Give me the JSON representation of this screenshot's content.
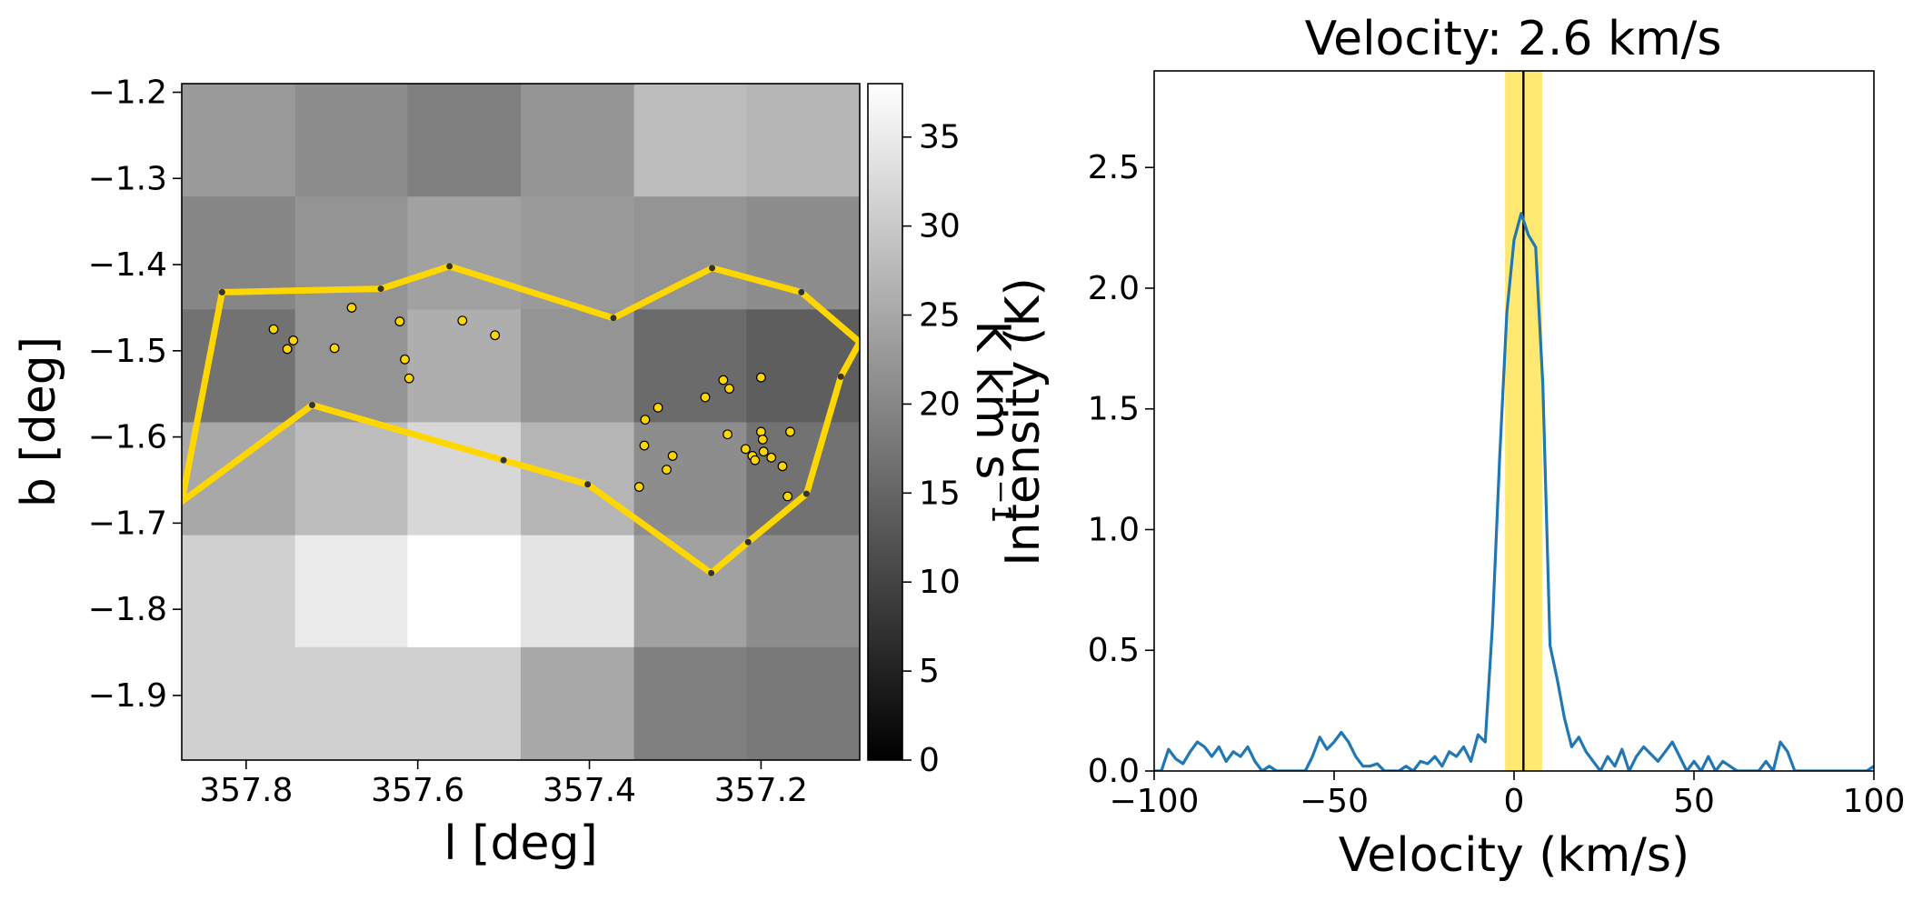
{
  "chart_data": [
    {
      "type": "heatmap",
      "xlabel": "l [deg]",
      "ylabel": "b [deg]",
      "xlim": [
        357.875,
        357.085
      ],
      "ylim": [
        -1.975,
        -1.19
      ],
      "xticks": [
        357.8,
        357.6,
        357.4,
        357.2
      ],
      "xtick_labels": [
        "357.8",
        "357.6",
        "357.4",
        "357.2"
      ],
      "yticks": [
        -1.2,
        -1.3,
        -1.4,
        -1.5,
        -1.6,
        -1.7,
        -1.8,
        -1.9
      ],
      "ytick_labels": [
        "−1.2",
        "−1.3",
        "−1.4",
        "−1.5",
        "−1.6",
        "−1.7",
        "−1.8",
        "−1.9"
      ],
      "colormap": "gray",
      "color_range": [
        0,
        38
      ],
      "colorbar_label": "K km s⁻¹",
      "colorbar_ticks": [
        0,
        5,
        10,
        15,
        20,
        25,
        30,
        35
      ],
      "colorbar_tick_labels": [
        "0",
        "5",
        "10",
        "15",
        "20",
        "25",
        "30",
        "35"
      ],
      "grid": {
        "l_edges": [
          357.875,
          357.743,
          357.612,
          357.48,
          357.348,
          357.217,
          357.085
        ],
        "b_edges": [
          -1.19,
          -1.321,
          -1.452,
          -1.583,
          -1.714,
          -1.844,
          -1.975
        ],
        "values": [
          [
            23,
            21,
            19,
            22,
            28,
            27
          ],
          [
            20,
            22,
            24,
            23,
            22,
            21
          ],
          [
            17,
            22,
            26,
            22,
            16,
            14
          ],
          [
            25,
            28,
            32,
            27,
            21,
            17
          ],
          [
            31,
            35,
            38,
            34,
            24,
            21
          ],
          [
            31,
            31,
            31,
            25,
            19,
            18
          ]
        ]
      },
      "region_color": "#ffd700",
      "region_polygon": [
        [
          357.875,
          -1.675
        ],
        [
          357.828,
          -1.432
        ],
        [
          357.643,
          -1.428
        ],
        [
          357.563,
          -1.402
        ],
        [
          357.372,
          -1.462
        ],
        [
          357.257,
          -1.404
        ],
        [
          357.153,
          -1.432
        ],
        [
          357.085,
          -1.49
        ],
        [
          357.107,
          -1.53
        ],
        [
          357.147,
          -1.666
        ],
        [
          357.215,
          -1.722
        ],
        [
          357.258,
          -1.758
        ],
        [
          357.402,
          -1.655
        ],
        [
          357.5,
          -1.627
        ],
        [
          357.723,
          -1.563
        ],
        [
          357.875,
          -1.675
        ]
      ],
      "sources": [
        [
          357.768,
          -1.475
        ],
        [
          357.752,
          -1.498
        ],
        [
          357.745,
          -1.488
        ],
        [
          357.697,
          -1.497
        ],
        [
          357.677,
          -1.45
        ],
        [
          357.621,
          -1.466
        ],
        [
          357.615,
          -1.51
        ],
        [
          357.61,
          -1.532
        ],
        [
          357.548,
          -1.465
        ],
        [
          357.51,
          -1.482
        ],
        [
          357.335,
          -1.58
        ],
        [
          357.32,
          -1.566
        ],
        [
          357.336,
          -1.61
        ],
        [
          357.31,
          -1.638
        ],
        [
          357.303,
          -1.622
        ],
        [
          357.342,
          -1.658
        ],
        [
          357.265,
          -1.554
        ],
        [
          357.244,
          -1.534
        ],
        [
          357.237,
          -1.544
        ],
        [
          357.2,
          -1.531
        ],
        [
          357.239,
          -1.597
        ],
        [
          357.2,
          -1.594
        ],
        [
          357.198,
          -1.603
        ],
        [
          357.218,
          -1.614
        ],
        [
          357.21,
          -1.622
        ],
        [
          357.197,
          -1.617
        ],
        [
          357.207,
          -1.627
        ],
        [
          357.188,
          -1.624
        ],
        [
          357.175,
          -1.634
        ],
        [
          357.166,
          -1.594
        ],
        [
          357.169,
          -1.669
        ]
      ]
    },
    {
      "type": "line",
      "title": "Velocity: 2.6 km/s",
      "xlabel": "Velocity (km/s)",
      "ylabel": "Intensity (K)",
      "xlim": [
        -100,
        100
      ],
      "ylim": [
        0,
        2.9
      ],
      "xticks": [
        -100,
        -50,
        0,
        50,
        100
      ],
      "xtick_labels": [
        "−100",
        "−50",
        "0",
        "50",
        "100"
      ],
      "yticks": [
        0.0,
        0.5,
        1.0,
        1.5,
        2.0,
        2.5
      ],
      "ytick_labels": [
        "0.0",
        "0.5",
        "1.0",
        "1.5",
        "2.0",
        "2.5"
      ],
      "series_color": "#1f77b4",
      "marker_velocity": 2.6,
      "band": [
        -2.5,
        7.8
      ],
      "band_color": "#ffd700",
      "x": [
        -100,
        -98,
        -96,
        -94,
        -92,
        -90,
        -88,
        -86,
        -84,
        -82,
        -80,
        -78,
        -76,
        -74,
        -72,
        -70,
        -68,
        -66,
        -64,
        -62,
        -60,
        -58,
        -56,
        -54,
        -52,
        -50,
        -48,
        -46,
        -44,
        -42,
        -40,
        -38,
        -36,
        -34,
        -32,
        -30,
        -28,
        -26,
        -24,
        -22,
        -20,
        -18,
        -16,
        -14,
        -12,
        -10,
        -8,
        -6,
        -4,
        -2,
        0,
        2,
        4,
        6,
        8,
        10,
        12,
        14,
        16,
        18,
        20,
        22,
        24,
        26,
        28,
        30,
        32,
        34,
        36,
        38,
        40,
        42,
        44,
        46,
        48,
        50,
        52,
        54,
        56,
        58,
        60,
        62,
        64,
        66,
        68,
        70,
        72,
        74,
        76,
        78,
        80,
        82,
        84,
        86,
        88,
        90,
        92,
        94,
        96,
        98,
        100
      ],
      "y": [
        0.0,
        0.0,
        0.09,
        0.05,
        0.03,
        0.08,
        0.12,
        0.1,
        0.06,
        0.1,
        0.04,
        0.08,
        0.06,
        0.1,
        0.04,
        0.0,
        0.02,
        0.0,
        0.0,
        0.0,
        0.0,
        0.0,
        0.06,
        0.14,
        0.09,
        0.12,
        0.16,
        0.12,
        0.06,
        0.02,
        0.02,
        0.03,
        0.0,
        0.0,
        0.0,
        0.02,
        0.0,
        0.04,
        0.03,
        0.06,
        0.02,
        0.08,
        0.06,
        0.1,
        0.04,
        0.15,
        0.12,
        0.6,
        1.3,
        1.9,
        2.2,
        2.31,
        2.22,
        2.17,
        1.6,
        0.52,
        0.38,
        0.22,
        0.1,
        0.14,
        0.08,
        0.04,
        0.0,
        0.06,
        0.02,
        0.09,
        0.0,
        0.06,
        0.1,
        0.07,
        0.04,
        0.08,
        0.12,
        0.06,
        0.0,
        0.04,
        0.0,
        0.06,
        0.0,
        0.04,
        0.02,
        0.0,
        0.0,
        0.0,
        0.0,
        0.04,
        0.0,
        0.12,
        0.08,
        0.0,
        0.0,
        0.0,
        0.0,
        0.0,
        0.0,
        0.0,
        0.0,
        0.0,
        0.0,
        0.0,
        0.02
      ]
    }
  ]
}
